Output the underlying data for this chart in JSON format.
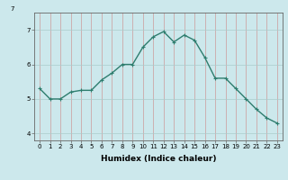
{
  "x": [
    0,
    1,
    2,
    3,
    4,
    5,
    6,
    7,
    8,
    9,
    10,
    11,
    12,
    13,
    14,
    15,
    16,
    17,
    18,
    19,
    20,
    21,
    22,
    23
  ],
  "y": [
    5.3,
    5.0,
    5.0,
    5.2,
    5.25,
    5.25,
    5.55,
    5.75,
    6.0,
    6.0,
    6.5,
    6.8,
    6.95,
    6.65,
    6.85,
    6.7,
    6.2,
    5.6,
    5.6,
    5.3,
    5.0,
    4.7,
    4.45,
    4.3
  ],
  "line_color": "#2e7d6e",
  "marker": "+",
  "marker_size": 3,
  "linewidth": 1.0,
  "bg_color": "#cce8ec",
  "grid_color": "#aacccc",
  "xlabel": "Humidex (Indice chaleur)",
  "xlim": [
    -0.5,
    23.5
  ],
  "ylim": [
    3.8,
    7.5
  ],
  "yticks": [
    4,
    5,
    6,
    7
  ],
  "xticks": [
    0,
    1,
    2,
    3,
    4,
    5,
    6,
    7,
    8,
    9,
    10,
    11,
    12,
    13,
    14,
    15,
    16,
    17,
    18,
    19,
    20,
    21,
    22,
    23
  ],
  "tick_fontsize": 5.0,
  "xlabel_fontsize": 6.5,
  "spine_color": "#666666"
}
